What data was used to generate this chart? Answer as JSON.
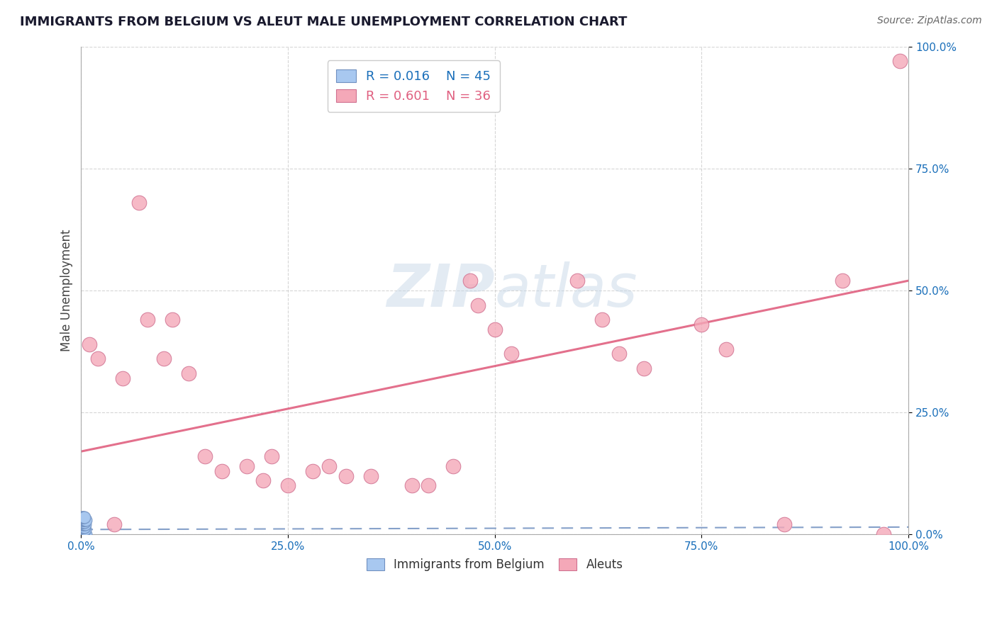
{
  "title": "IMMIGRANTS FROM BELGIUM VS ALEUT MALE UNEMPLOYMENT CORRELATION CHART",
  "source": "Source: ZipAtlas.com",
  "ylabel": "Male Unemployment",
  "xlim": [
    0,
    1
  ],
  "ylim": [
    0,
    1
  ],
  "xticks": [
    0.0,
    0.25,
    0.5,
    0.75,
    1.0
  ],
  "xtick_labels": [
    "0.0%",
    "25.0%",
    "50.0%",
    "75.0%",
    "100.0%"
  ],
  "yticks": [
    0.0,
    0.25,
    0.5,
    0.75,
    1.0
  ],
  "ytick_labels": [
    "0.0%",
    "25.0%",
    "50.0%",
    "75.0%",
    "100.0%"
  ],
  "blue_color": "#a8c8f0",
  "pink_color": "#f4a8b8",
  "blue_edge": "#7090c0",
  "pink_edge": "#d07090",
  "title_color": "#1a1a2e",
  "axis_label_color": "#1a6fba",
  "trend_blue_color": "#7090c0",
  "trend_pink_color": "#e06080",
  "watermark_color": "#c8d8e8",
  "legend_R_blue": "R = 0.016",
  "legend_N_blue": "N = 45",
  "legend_R_pink": "R = 0.601",
  "legend_N_pink": "N = 36",
  "blue_dots": [
    [
      0.0,
      0.0
    ],
    [
      0.001,
      0.0
    ],
    [
      0.002,
      0.0
    ],
    [
      0.003,
      0.0
    ],
    [
      0.004,
      0.0
    ],
    [
      0.005,
      0.0
    ],
    [
      0.006,
      0.0
    ],
    [
      0.0,
      0.005
    ],
    [
      0.001,
      0.005
    ],
    [
      0.002,
      0.005
    ],
    [
      0.003,
      0.005
    ],
    [
      0.0,
      0.01
    ],
    [
      0.001,
      0.01
    ],
    [
      0.002,
      0.01
    ],
    [
      0.003,
      0.01
    ],
    [
      0.004,
      0.01
    ],
    [
      0.005,
      0.01
    ],
    [
      0.0,
      0.015
    ],
    [
      0.001,
      0.015
    ],
    [
      0.002,
      0.015
    ],
    [
      0.003,
      0.015
    ],
    [
      0.004,
      0.015
    ],
    [
      0.0,
      0.02
    ],
    [
      0.001,
      0.02
    ],
    [
      0.002,
      0.02
    ],
    [
      0.003,
      0.02
    ],
    [
      0.004,
      0.02
    ],
    [
      0.005,
      0.02
    ],
    [
      0.0,
      0.025
    ],
    [
      0.001,
      0.025
    ],
    [
      0.002,
      0.025
    ],
    [
      0.003,
      0.025
    ],
    [
      0.004,
      0.025
    ],
    [
      0.0,
      0.03
    ],
    [
      0.001,
      0.03
    ],
    [
      0.002,
      0.03
    ],
    [
      0.003,
      0.03
    ],
    [
      0.004,
      0.03
    ],
    [
      0.005,
      0.03
    ],
    [
      0.006,
      0.03
    ],
    [
      0.0,
      0.035
    ],
    [
      0.001,
      0.035
    ],
    [
      0.002,
      0.035
    ],
    [
      0.003,
      0.035
    ],
    [
      0.004,
      0.035
    ]
  ],
  "pink_dots": [
    [
      0.01,
      0.39
    ],
    [
      0.02,
      0.36
    ],
    [
      0.04,
      0.02
    ],
    [
      0.05,
      0.32
    ],
    [
      0.07,
      0.68
    ],
    [
      0.08,
      0.44
    ],
    [
      0.1,
      0.36
    ],
    [
      0.11,
      0.44
    ],
    [
      0.13,
      0.33
    ],
    [
      0.15,
      0.16
    ],
    [
      0.17,
      0.13
    ],
    [
      0.2,
      0.14
    ],
    [
      0.22,
      0.11
    ],
    [
      0.23,
      0.16
    ],
    [
      0.25,
      0.1
    ],
    [
      0.28,
      0.13
    ],
    [
      0.3,
      0.14
    ],
    [
      0.32,
      0.12
    ],
    [
      0.35,
      0.12
    ],
    [
      0.4,
      0.1
    ],
    [
      0.42,
      0.1
    ],
    [
      0.45,
      0.14
    ],
    [
      0.47,
      0.52
    ],
    [
      0.48,
      0.47
    ],
    [
      0.5,
      0.42
    ],
    [
      0.52,
      0.37
    ],
    [
      0.6,
      0.52
    ],
    [
      0.63,
      0.44
    ],
    [
      0.65,
      0.37
    ],
    [
      0.68,
      0.34
    ],
    [
      0.75,
      0.43
    ],
    [
      0.78,
      0.38
    ],
    [
      0.85,
      0.02
    ],
    [
      0.92,
      0.52
    ],
    [
      0.97,
      0.0
    ],
    [
      0.99,
      0.97
    ]
  ]
}
